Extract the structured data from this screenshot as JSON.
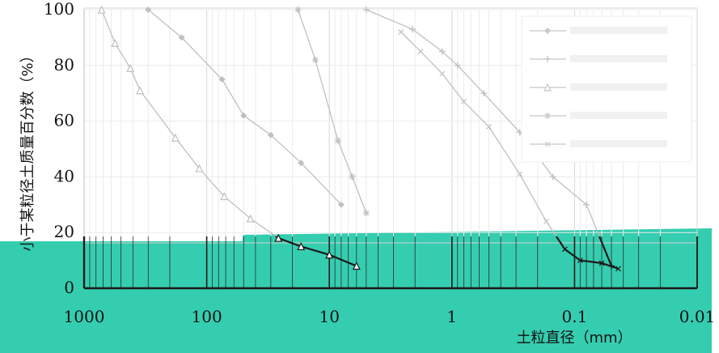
{
  "chart_data": {
    "type": "line",
    "title": "",
    "xlabel": "土粒直径（mm）",
    "ylabel": "小于某粒径土质量百分数（%）",
    "x_scale": "log",
    "x_reversed": true,
    "xlim": [
      1000,
      0.01
    ],
    "ylim": [
      0,
      100
    ],
    "x_tick_labels": [
      "1000",
      "100",
      "10",
      "1",
      "0.1",
      "0.01"
    ],
    "y_tick_labels": [
      "0",
      "20",
      "40",
      "60",
      "80",
      "100"
    ],
    "grid": true,
    "legend_position": "top-right",
    "colors": {
      "background_upper": "#ffffff",
      "background_lower": "#35cdb0",
      "axis": "#222222",
      "faded_curve": "#c0c0c0",
      "dark_curve": "#1a1a1a"
    },
    "series": [
      {
        "marker": "diamond",
        "x": [
          300,
          160,
          75,
          50,
          30,
          17,
          8
        ],
        "y": [
          100,
          90,
          75,
          62,
          55,
          45,
          30
        ]
      },
      {
        "marker": "plus",
        "x": [
          5,
          2.1,
          1.2,
          0.9,
          0.55,
          0.28,
          0.15,
          0.08,
          0.05
        ],
        "y": [
          100,
          93,
          85,
          80,
          70,
          56,
          40,
          30,
          8
        ]
      },
      {
        "marker": "triangle",
        "x": [
          720,
          560,
          420,
          350,
          180,
          115,
          72,
          44,
          26,
          17,
          10,
          6
        ],
        "y": [
          100,
          88,
          79,
          71,
          54,
          43,
          33,
          25,
          18,
          15,
          12,
          8
        ]
      },
      {
        "marker": "asterisk",
        "x": [
          18,
          13,
          8.5,
          6.5,
          5
        ],
        "y": [
          100,
          82,
          53,
          40,
          27
        ]
      },
      {
        "marker": "cross",
        "x": [
          2.6,
          1.8,
          1.2,
          0.8,
          0.5,
          0.28,
          0.17,
          0.12,
          0.09,
          0.06,
          0.044
        ],
        "y": [
          92,
          85,
          77,
          67,
          58,
          41,
          24,
          14,
          10,
          9,
          7
        ]
      }
    ]
  }
}
